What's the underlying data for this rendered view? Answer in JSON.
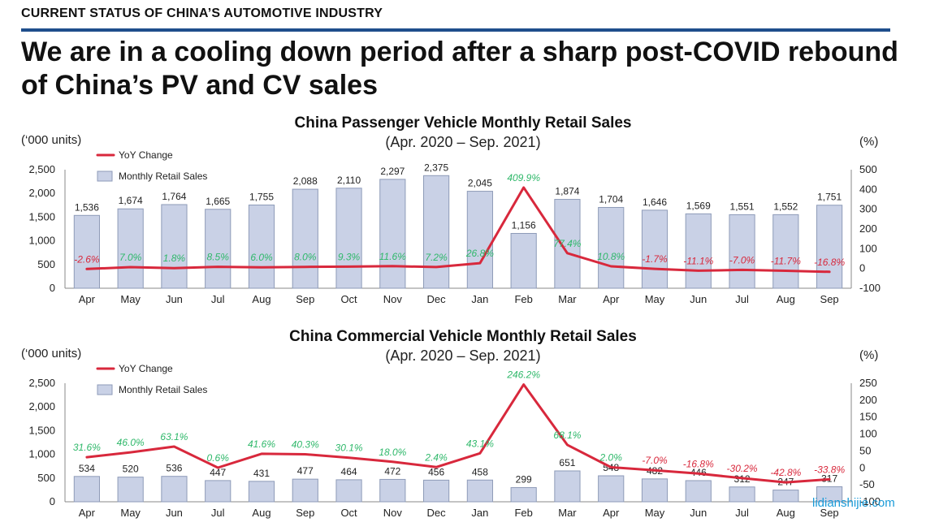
{
  "header": {
    "section": "CURRENT STATUS OF CHINA’S AUTOMOTIVE INDUSTRY",
    "headline": "We are in a cooling down period after a sharp post-COVID rebound of China’s PV and CV sales"
  },
  "watermark": "lidianshijie.com",
  "colors": {
    "rule": "#1f4e8c",
    "line": "#d8283c",
    "bar": "#c9d1e6",
    "positive": "#2fb86a",
    "negative": "#d8283c"
  },
  "chart_data": [
    {
      "type": "bar",
      "title": "China Passenger Vehicle Monthly Retail Sales",
      "subtitle": "(Apr. 2020 – Sep. 2021)",
      "ylabel": "(‘000 units)",
      "y2label": "(%)",
      "ylim": [
        0,
        2500
      ],
      "y2lim": [
        -100,
        500
      ],
      "yticks": [
        "0",
        "500",
        "1,000",
        "1,500",
        "2,000",
        "2,500"
      ],
      "y2ticks": [
        "-100",
        "0",
        "100",
        "200",
        "300",
        "400",
        "500"
      ],
      "legend": [
        "YoY Change",
        "Monthly Retail Sales"
      ],
      "categories": [
        "Apr",
        "May",
        "Jun",
        "Jul",
        "Aug",
        "Sep",
        "Oct",
        "Nov",
        "Dec",
        "Jan",
        "Feb",
        "Mar",
        "Apr",
        "May",
        "Jun",
        "Jul",
        "Aug",
        "Sep"
      ],
      "series": [
        {
          "name": "Monthly Retail Sales",
          "values": [
            1536,
            1674,
            1764,
            1665,
            1755,
            2088,
            2110,
            2297,
            2375,
            2045,
            1156,
            1874,
            1704,
            1646,
            1569,
            1551,
            1552,
            1751
          ],
          "labels": [
            "1,536",
            "1,674",
            "1,764",
            "1,665",
            "1,755",
            "2,088",
            "2,110",
            "2,297",
            "2,375",
            "2,045",
            "1,156",
            "1,874",
            "1,704",
            "1,646",
            "1,569",
            "1,551",
            "1,552",
            "1,751"
          ]
        },
        {
          "name": "YoY Change",
          "values": [
            -2.6,
            7.0,
            1.8,
            8.5,
            6.0,
            8.0,
            9.3,
            11.6,
            7.2,
            26.8,
            409.9,
            77.4,
            10.8,
            -1.7,
            -11.1,
            -7.0,
            -11.7,
            -16.8
          ],
          "labels": [
            "-2.6%",
            "7.0%",
            "1.8%",
            "8.5%",
            "6.0%",
            "8.0%",
            "9.3%",
            "11.6%",
            "7.2%",
            "26.8%",
            "409.9%",
            "77.4%",
            "10.8%",
            "-1.7%",
            "-11.1%",
            "-7.0%",
            "-11.7%",
            "-16.8%"
          ]
        }
      ]
    },
    {
      "type": "bar",
      "title": "China Commercial Vehicle Monthly Retail Sales",
      "subtitle": "(Apr. 2020 – Sep. 2021)",
      "ylabel": "(‘000 units)",
      "y2label": "(%)",
      "ylim": [
        0,
        2500
      ],
      "y2lim": [
        -100,
        250
      ],
      "yticks": [
        "0",
        "500",
        "1,000",
        "1,500",
        "2,000",
        "2,500"
      ],
      "y2ticks": [
        "-100",
        "-50",
        "0",
        "50",
        "100",
        "150",
        "200",
        "250"
      ],
      "legend": [
        "YoY Change",
        "Monthly Retail Sales"
      ],
      "categories": [
        "Apr",
        "May",
        "Jun",
        "Jul",
        "Aug",
        "Sep",
        "Oct",
        "Nov",
        "Dec",
        "Jan",
        "Feb",
        "Mar",
        "Apr",
        "May",
        "Jun",
        "Jul",
        "Aug",
        "Sep"
      ],
      "series": [
        {
          "name": "Monthly Retail Sales",
          "values": [
            534,
            520,
            536,
            447,
            431,
            477,
            464,
            472,
            456,
            458,
            299,
            651,
            548,
            482,
            446,
            312,
            247,
            317
          ],
          "labels": [
            "534",
            "520",
            "536",
            "447",
            "431",
            "477",
            "464",
            "472",
            "456",
            "458",
            "299",
            "651",
            "548",
            "482",
            "446",
            "312",
            "247",
            "317"
          ]
        },
        {
          "name": "YoY Change",
          "values": [
            31.6,
            46.0,
            63.1,
            0.6,
            41.6,
            40.3,
            30.1,
            18.0,
            2.4,
            43.1,
            246.2,
            68.1,
            2.0,
            -7.0,
            -16.8,
            -30.2,
            -42.8,
            -33.8
          ],
          "labels": [
            "31.6%",
            "46.0%",
            "63.1%",
            "0.6%",
            "41.6%",
            "40.3%",
            "30.1%",
            "18.0%",
            "2.4%",
            "43.1%",
            "246.2%",
            "68.1%",
            "2.0%",
            "-7.0%",
            "-16.8%",
            "-30.2%",
            "-42.8%",
            "-33.8%"
          ]
        }
      ]
    }
  ]
}
